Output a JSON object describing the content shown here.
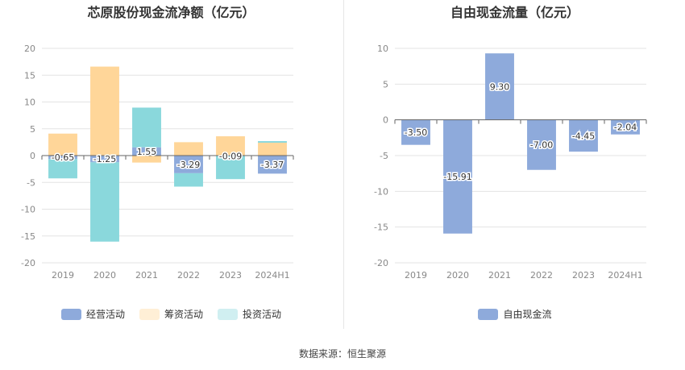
{
  "source_text": "数据来源：恒生聚源",
  "chart_data": [
    {
      "type": "bar",
      "title": "芯原股份现金流净额（亿元）",
      "categories": [
        "2019",
        "2020",
        "2021",
        "2022",
        "2023",
        "2024H1"
      ],
      "stacked": true,
      "ylim": [
        -20,
        20
      ],
      "yticks": [
        20,
        15,
        10,
        5,
        0,
        -5,
        -10,
        -15,
        -20
      ],
      "grid": true,
      "legend_position": "bottom",
      "series": [
        {
          "name": "经营活动",
          "color": "#8eaadb",
          "values": [
            -0.65,
            -1.25,
            1.55,
            -3.29,
            -0.09,
            -3.37
          ],
          "labels": [
            "-0.65",
            "-1.25",
            "1.55",
            "-3.29",
            "-0.09",
            "-3.37"
          ]
        },
        {
          "name": "筹资活动",
          "color": "#ffd699",
          "values": [
            4.1,
            16.6,
            -1.3,
            2.5,
            3.6,
            2.4
          ]
        },
        {
          "name": "投资活动",
          "color": "#8ad8dc",
          "values": [
            -3.6,
            -14.8,
            7.4,
            -2.5,
            -4.3,
            0.3
          ]
        }
      ]
    },
    {
      "type": "bar",
      "title": "自由现金流量（亿元）",
      "categories": [
        "2019",
        "2020",
        "2021",
        "2022",
        "2023",
        "2024H1"
      ],
      "ylim": [
        -20,
        10
      ],
      "yticks": [
        10,
        5,
        0,
        -5,
        -10,
        -15,
        -20
      ],
      "grid": true,
      "legend_position": "bottom",
      "series": [
        {
          "name": "自由现金流",
          "color": "#8eaadb",
          "values": [
            -3.5,
            -15.91,
            9.3,
            -7.0,
            -4.45,
            -2.04
          ],
          "labels": [
            "-3.50",
            "-15.91",
            "9.30",
            "-7.00",
            "-4.45",
            "-2.04"
          ]
        }
      ]
    }
  ]
}
